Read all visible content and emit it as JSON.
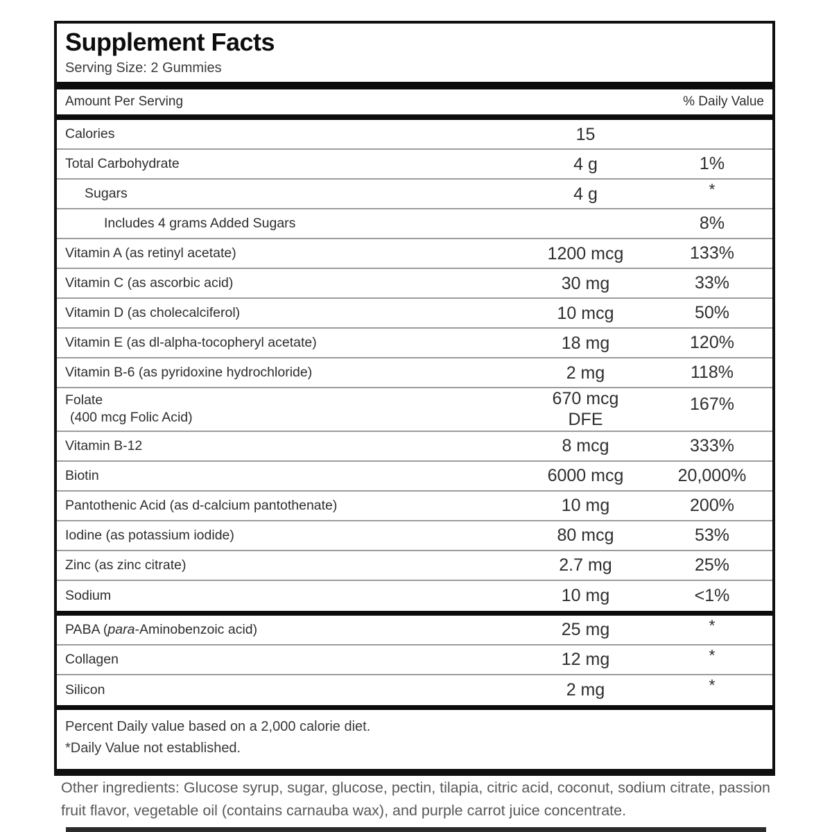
{
  "panel": {
    "title": "Supplement Facts",
    "serving_size": "Serving Size: 2 Gummies",
    "amount_header": "Amount Per Serving",
    "dv_header": "% Daily Value",
    "rows": [
      {
        "name": "Calories",
        "amount": "15",
        "dv": "",
        "indent": 0
      },
      {
        "name": "Total Carbohydrate",
        "amount": "4 g",
        "dv": "1%",
        "indent": 0
      },
      {
        "name": "Sugars",
        "amount": "4 g",
        "dv": "*",
        "star": true,
        "indent": 1
      },
      {
        "name": "Includes 4 grams Added Sugars",
        "amount": "",
        "dv": "8%",
        "indent": 2
      },
      {
        "name": "Vitamin A (as retinyl acetate)",
        "amount": "1200 mcg",
        "dv": "133%",
        "indent": 0
      },
      {
        "name": "Vitamin C (as ascorbic acid)",
        "amount": "30 mg",
        "dv": "33%",
        "indent": 0
      },
      {
        "name": "Vitamin D (as cholecalciferol)",
        "amount": "10 mcg",
        "dv": "50%",
        "indent": 0
      },
      {
        "name": "Vitamin E (as dl-alpha-tocopheryl acetate)",
        "amount": "18 mg",
        "dv": "120%",
        "indent": 0
      },
      {
        "name": "Vitamin B-6 (as pyridoxine hydrochloride)",
        "amount": "2 mg",
        "dv": "118%",
        "indent": 0
      },
      {
        "name_lines": [
          "Folate",
          "(400 mcg Folic Acid)"
        ],
        "amount_lines": [
          "670 mcg",
          "DFE"
        ],
        "dv": "167%",
        "dv_top": true,
        "indent": 0
      },
      {
        "name": "Vitamin B-12",
        "amount": "8 mcg",
        "dv": "333%",
        "indent": 0
      },
      {
        "name": "Biotin",
        "amount": "6000 mcg",
        "dv": "20,000%",
        "indent": 0
      },
      {
        "name": "Pantothenic Acid (as d-calcium pantothenate)",
        "amount": "10 mg",
        "dv": "200%",
        "indent": 0
      },
      {
        "name": "Iodine (as potassium iodide)",
        "amount": "80 mcg",
        "dv": "53%",
        "indent": 0
      },
      {
        "name": "Zinc (as zinc citrate)",
        "amount": "2.7 mg",
        "dv": "25%",
        "indent": 0
      },
      {
        "name": "Sodium",
        "amount": "10 mg",
        "dv": "<1%",
        "indent": 0,
        "thick_after": true
      },
      {
        "name_rich": {
          "pre": "PABA (",
          "italic": "para",
          "post": "-Aminobenzoic acid)"
        },
        "amount": "25 mg",
        "dv": "*",
        "star": true,
        "indent": 0
      },
      {
        "name": "Collagen",
        "amount": "12 mg",
        "dv": "*",
        "star": true,
        "indent": 0
      },
      {
        "name": "Silicon",
        "amount": "2 mg",
        "dv": "*",
        "star": true,
        "indent": 0,
        "thick_after": true
      }
    ],
    "footnotes": [
      "Percent Daily value based on a 2,000 calorie diet.",
      "*Daily Value not established."
    ]
  },
  "other_ingredients": "Other ingredients: Glucose syrup, sugar, glucose, pectin, tilapia, citric acid, coconut, sodium citrate, passion fruit flavor, vegetable oil (contains carnauba wax), and purple carrot juice concentrate.",
  "colors": {
    "border_black": "#101010",
    "separator_gray": "#9b9b9b",
    "text_dark": "#2d2d2d",
    "text_gray": "#585858"
  }
}
